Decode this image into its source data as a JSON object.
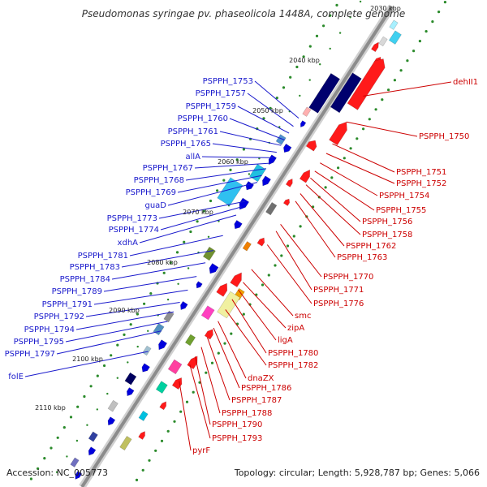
{
  "title": "Pseudomonas syringae pv. phaseolicola 1448A, complete genome",
  "footer": {
    "accession": "Accession: NC_005773",
    "summary": "Topology: circular; Length: 5,928,787 bp; Genes: 5,066"
  },
  "ticks": [
    "2030 kbp",
    "2040 kbp",
    "2050 kbp",
    "2060 kbp",
    "2070 kbp",
    "2080 kbp",
    "2090 kbp",
    "2100 kbp",
    "2110 kbp"
  ],
  "colors": {
    "reverse_label": "#1a1acc",
    "forward_label": "#cc0000",
    "backbone": "#a0a0a0",
    "forward_gene": "#ff1a1a",
    "reverse_gene": "#0000dd",
    "rna_dark": "#00006e",
    "gc_dots": "#2a8a2a"
  },
  "labels_left": [
    "PSPPH_1753",
    "PSPPH_1757",
    "PSPPH_1759",
    "PSPPH_1760",
    "PSPPH_1761",
    "PSPPH_1765",
    "allA",
    "PSPPH_1767",
    "PSPPH_1768",
    "PSPPH_1769",
    "guaD",
    "PSPPH_1773",
    "PSPPH_1774",
    "xdhA",
    "PSPPH_1781",
    "PSPPH_1783",
    "PSPPH_1784",
    "PSPPH_1789",
    "PSPPH_1791",
    "PSPPH_1792",
    "PSPPH_1794",
    "PSPPH_1795",
    "PSPPH_1797",
    "folE"
  ],
  "labels_right": [
    "dehII1",
    "PSPPH_1750",
    "PSPPH_1751",
    "PSPPH_1752",
    "PSPPH_1754",
    "PSPPH_1755",
    "PSPPH_1756",
    "PSPPH_1758",
    "PSPPH_1762",
    "PSPPH_1763",
    "PSPPH_1770",
    "PSPPH_1771",
    "PSPPH_1776",
    "smc",
    "zipA",
    "ligA",
    "PSPPH_1780",
    "PSPPH_1782",
    "dnaZX",
    "PSPPH_1786",
    "PSPPH_1787",
    "PSPPH_1788",
    "PSPPH_1790",
    "PSPPH_1793",
    "pyrF"
  ]
}
